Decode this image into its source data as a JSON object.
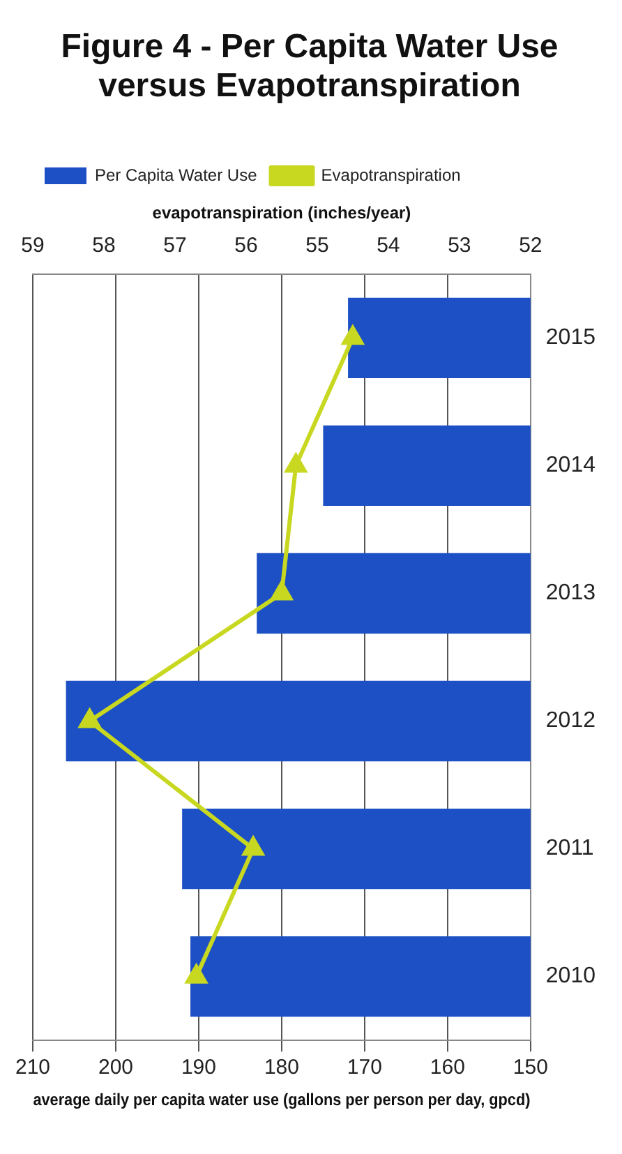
{
  "chart_data": {
    "type": "bar",
    "orientation": "horizontal",
    "title": "Figure 4 - Per Capita Water Use versus Evapotranspiration",
    "categories": [
      "2015",
      "2014",
      "2013",
      "2012",
      "2011",
      "2010"
    ],
    "series": [
      {
        "name": "Per Capita Water Use",
        "color": "#1c50c4",
        "values": [
          172,
          175,
          183,
          206,
          192,
          191
        ]
      },
      {
        "name": "Evapotranspiration",
        "type": "line",
        "axis": "x2",
        "color": "#c8d820",
        "marker": "triangle",
        "values": [
          54.5,
          55.3,
          55.5,
          58.2,
          55.9,
          56.7
        ]
      }
    ],
    "xlabel": "average daily per capita water use (gallons per person per day, gpcd)",
    "x2label": "evapotranspiration (inches/year)",
    "xlim": [
      210,
      150
    ],
    "xticks": [
      210,
      200,
      190,
      180,
      170,
      160,
      150
    ],
    "x2lim": [
      59,
      52
    ],
    "x2ticks": [
      59,
      58,
      57,
      56,
      55,
      54,
      53,
      52
    ],
    "grid": "x",
    "legend": "top left"
  }
}
